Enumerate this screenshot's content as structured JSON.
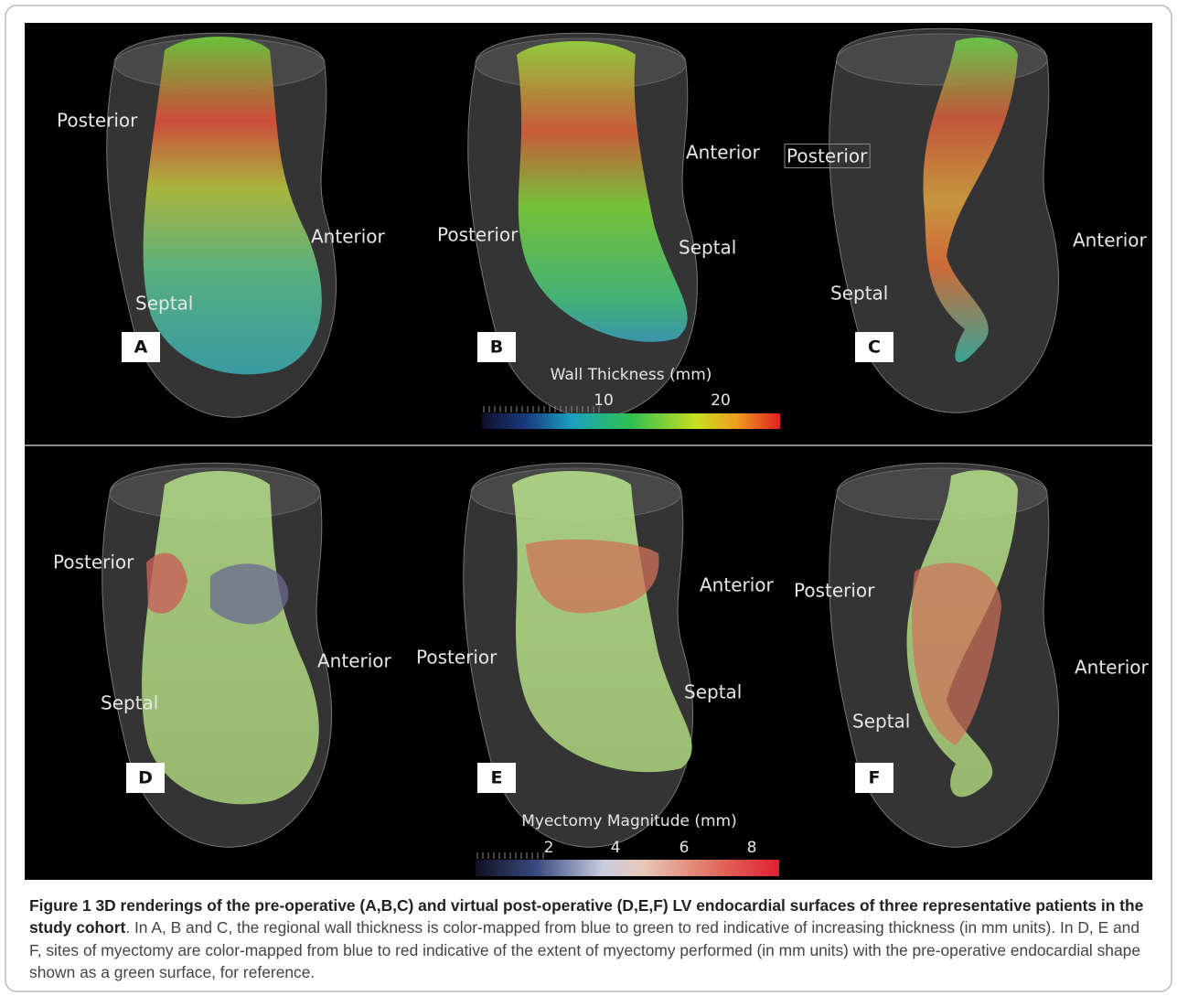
{
  "panels": [
    {
      "letter": "A",
      "labels": [
        "Posterior",
        "Anterior",
        "Septal"
      ]
    },
    {
      "letter": "B",
      "labels": [
        "Anterior",
        "Posterior",
        "Septal"
      ]
    },
    {
      "letter": "C",
      "labels": [
        "Posterior",
        "Anterior",
        "Septal"
      ]
    },
    {
      "letter": "D",
      "labels": [
        "Posterior",
        "Anterior",
        "Septal"
      ]
    },
    {
      "letter": "E",
      "labels": [
        "Anterior",
        "Posterior",
        "Septal"
      ]
    },
    {
      "letter": "F",
      "labels": [
        "Posterior",
        "Anterior",
        "Septal"
      ]
    }
  ],
  "colorbars": [
    {
      "title": "Wall Thickness (mm)",
      "ticks": [
        10,
        20
      ]
    },
    {
      "title": "Myectomy Magnitude (mm)",
      "ticks": [
        2,
        4,
        6,
        8
      ]
    }
  ],
  "caption": {
    "title": "Figure 1 3D renderings of the pre-operative (A,B,C) and virtual post-operative (D,E,F) LV endocardial surfaces of three representative patients in the study cohort",
    "text": ". In A, B and C, the regional wall thickness is color-mapped from blue to green to red indicative of increasing thickness (in mm units). In D, E and F, sites of myectomy are color-mapped from blue to red indicative of the extent of myectomy performed (in mm units) with the pre-operative endocardial shape shown as a green surface, for reference."
  }
}
